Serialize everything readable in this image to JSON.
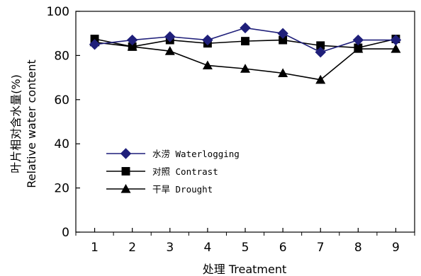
{
  "chart_data": {
    "type": "line",
    "title": "",
    "xlabel": "处理 Treatment",
    "ylabel_cn": "叶片相对含水量(%)",
    "ylabel_en": "Relative water content",
    "ylim": [
      0,
      100
    ],
    "yticks": [
      0,
      20,
      40,
      60,
      80,
      100
    ],
    "x": [
      1,
      2,
      3,
      4,
      5,
      6,
      7,
      8,
      9
    ],
    "grid": false,
    "legend_position": "lower-left",
    "series": [
      {
        "name": "水涝 Waterlogging",
        "marker": "diamond",
        "color": "#1f1f7a",
        "values": [
          85,
          87,
          88.5,
          87,
          92.5,
          90,
          81.5,
          87,
          87
        ]
      },
      {
        "name": "对照 Contrast",
        "marker": "square",
        "color": "#000000",
        "values": [
          87.5,
          84,
          87,
          85.5,
          86.5,
          87,
          84.5,
          83.5,
          87.5
        ]
      },
      {
        "name": "干旱 Drought",
        "marker": "triangle",
        "color": "#000000",
        "values": [
          86,
          84,
          82,
          75.5,
          74,
          72,
          69,
          83,
          83
        ]
      }
    ]
  }
}
